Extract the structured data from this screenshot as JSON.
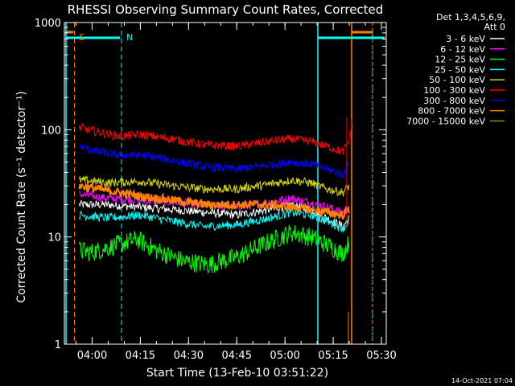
{
  "chart_data": {
    "type": "line",
    "title": "RHESSI Observing Summary Count Rates, Corrected",
    "ylabel": "Corrected Count Rate (s⁻¹ detector⁻¹)",
    "xlabel": "Start Time (13-Feb-10 03:51:22)",
    "footer": "14-Oct-2021 07:04",
    "y_scale": "log",
    "ylim": [
      1,
      1000
    ],
    "y_ticks": [
      "1",
      "10",
      "100",
      "1000"
    ],
    "xlim": [
      "03:51:22",
      "05:31:30"
    ],
    "x_ticks": [
      "04:00",
      "04:15",
      "04:30",
      "04:45",
      "05:00",
      "05:15",
      "05:30"
    ],
    "legend_header": [
      "Det 1,3,4,5,6,9,",
      "Att 0"
    ],
    "legend_position": "right",
    "markers": [
      {
        "label": "S",
        "color": "#ff8000",
        "time": "03:54:30",
        "style": "dashed"
      },
      {
        "label": "N",
        "color": "#00ffff",
        "time": "04:09:10",
        "style": "dashed"
      }
    ],
    "series": [
      {
        "name": "3 - 6 keV",
        "color": "#ffffff",
        "points": [
          [
            "03:56",
            20
          ],
          [
            "04:05",
            20
          ],
          [
            "04:15",
            19
          ],
          [
            "04:25",
            18
          ],
          [
            "04:35",
            17
          ],
          [
            "04:45",
            16
          ],
          [
            "04:55",
            18
          ],
          [
            "05:02",
            20
          ],
          [
            "05:08",
            18
          ],
          [
            "05:13",
            15
          ],
          [
            "05:18",
            12.5
          ],
          [
            "05:20",
            15
          ]
        ]
      },
      {
        "name": "6 - 12 keV",
        "color": "#ff00ff",
        "points": [
          [
            "03:56",
            25
          ],
          [
            "04:05",
            23
          ],
          [
            "04:15",
            22
          ],
          [
            "04:25",
            21
          ],
          [
            "04:35",
            20
          ],
          [
            "04:45",
            19
          ],
          [
            "04:55",
            21
          ],
          [
            "05:02",
            23
          ],
          [
            "05:08",
            21
          ],
          [
            "05:13",
            19
          ],
          [
            "05:18",
            17
          ],
          [
            "05:20",
            20
          ]
        ]
      },
      {
        "name": "12 - 25 keV",
        "color": "#00ff00",
        "points": [
          [
            "03:56",
            7.5
          ],
          [
            "04:00",
            7.2
          ],
          [
            "04:08",
            8.5
          ],
          [
            "04:14",
            9.5
          ],
          [
            "04:20",
            7.5
          ],
          [
            "04:28",
            6
          ],
          [
            "04:36",
            5.5
          ],
          [
            "04:45",
            6.5
          ],
          [
            "04:55",
            9
          ],
          [
            "05:02",
            11
          ],
          [
            "05:08",
            10
          ],
          [
            "05:13",
            8.5
          ],
          [
            "05:18",
            7
          ],
          [
            "05:20",
            9
          ]
        ]
      },
      {
        "name": "25 - 50 keV",
        "color": "#00ffff",
        "points": [
          [
            "03:56",
            16
          ],
          [
            "04:05",
            15
          ],
          [
            "04:15",
            16
          ],
          [
            "04:25",
            14
          ],
          [
            "04:35",
            12.5
          ],
          [
            "04:45",
            13
          ],
          [
            "04:55",
            15
          ],
          [
            "05:02",
            17
          ],
          [
            "05:08",
            16
          ],
          [
            "05:13",
            14
          ],
          [
            "05:18",
            12
          ],
          [
            "05:20",
            14
          ]
        ]
      },
      {
        "name": "50 - 100 keV",
        "color": "#d7d700",
        "points": [
          [
            "03:56",
            34
          ],
          [
            "04:05",
            32
          ],
          [
            "04:15",
            33
          ],
          [
            "04:25",
            30
          ],
          [
            "04:35",
            28
          ],
          [
            "04:45",
            28
          ],
          [
            "04:55",
            31
          ],
          [
            "05:02",
            34
          ],
          [
            "05:08",
            32
          ],
          [
            "05:13",
            28
          ],
          [
            "05:18",
            26
          ],
          [
            "05:20",
            30
          ]
        ]
      },
      {
        "name": "100 - 300 keV",
        "color": "#ff0000",
        "points": [
          [
            "03:56",
            105
          ],
          [
            "04:02",
            95
          ],
          [
            "04:08",
            87
          ],
          [
            "04:15",
            90
          ],
          [
            "04:25",
            82
          ],
          [
            "04:35",
            72
          ],
          [
            "04:45",
            70
          ],
          [
            "04:55",
            78
          ],
          [
            "05:02",
            82
          ],
          [
            "05:08",
            78
          ],
          [
            "05:13",
            70
          ],
          [
            "05:18",
            62
          ],
          [
            "05:20",
            80
          ],
          [
            "05:21",
            130
          ]
        ]
      },
      {
        "name": "300 - 800 keV",
        "color": "#0000ff",
        "points": [
          [
            "03:56",
            70
          ],
          [
            "04:02",
            62
          ],
          [
            "04:08",
            58
          ],
          [
            "04:15",
            58
          ],
          [
            "04:25",
            52
          ],
          [
            "04:35",
            45
          ],
          [
            "04:45",
            43
          ],
          [
            "04:55",
            47
          ],
          [
            "05:02",
            50
          ],
          [
            "05:08",
            48
          ],
          [
            "05:13",
            43
          ],
          [
            "05:18",
            38
          ],
          [
            "05:20",
            50
          ]
        ]
      },
      {
        "name": "800 - 7000 keV",
        "color": "#ff8000",
        "points": [
          [
            "03:56",
            30
          ],
          [
            "04:05",
            27
          ],
          [
            "04:15",
            24
          ],
          [
            "04:25",
            22
          ],
          [
            "04:35",
            20
          ],
          [
            "04:45",
            20
          ],
          [
            "04:55",
            20
          ],
          [
            "05:02",
            19
          ],
          [
            "05:08",
            18
          ],
          [
            "05:13",
            17
          ],
          [
            "05:18",
            16
          ],
          [
            "05:20",
            18
          ]
        ]
      },
      {
        "name": "7000 - 15000 keV",
        "color": "#8b8b00",
        "points": []
      }
    ]
  }
}
